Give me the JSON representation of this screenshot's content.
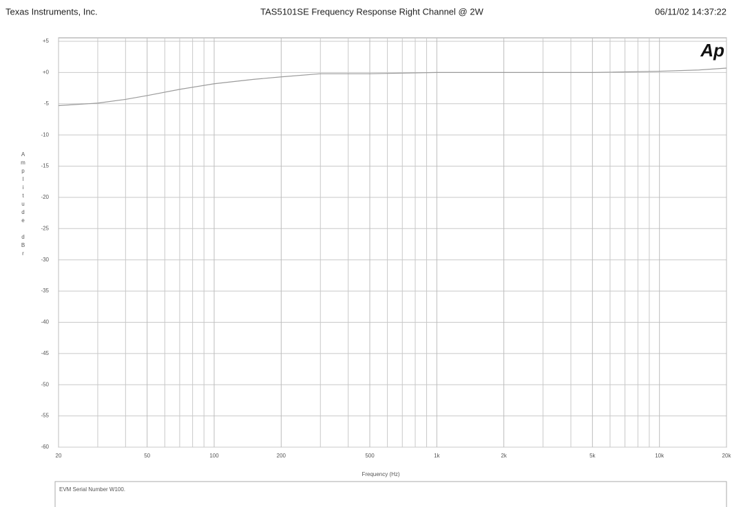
{
  "chart_data": {
    "type": "line",
    "company": "Texas Instruments, Inc.",
    "title": "TAS5101SE   Frequency Response Right Channel @ 2W",
    "timestamp": "06/11/02 14:37:22",
    "logo": "Ap",
    "xlabel": "Frequency (Hz)",
    "ylabel": "Amplitude dBr",
    "note": "EVM Serial Number W100.",
    "xscale": "log",
    "xlim": [
      20,
      20000
    ],
    "xticks": [
      20,
      50,
      100,
      200,
      500,
      {
        "value": 1000,
        "label": "1k"
      },
      {
        "value": 2000,
        "label": "2k"
      },
      {
        "value": 5000,
        "label": "5k"
      },
      {
        "value": 10000,
        "label": "10k"
      },
      {
        "value": 20000,
        "label": "20k"
      }
    ],
    "xminorticks": [
      30,
      40,
      60,
      70,
      80,
      90,
      300,
      400,
      600,
      700,
      800,
      900,
      3000,
      4000,
      6000,
      7000,
      8000,
      9000
    ],
    "ylim": [
      -60,
      5
    ],
    "yticks": [
      {
        "value": 5,
        "label": "+5"
      },
      {
        "value": 0,
        "label": "+0"
      },
      -5,
      -10,
      -15,
      -20,
      -25,
      -30,
      -35,
      -40,
      -45,
      -50,
      -55,
      -60
    ],
    "grid": true,
    "x": [
      20,
      30,
      40,
      50,
      70,
      100,
      150,
      200,
      300,
      500,
      700,
      1000,
      2000,
      5000,
      10000,
      15000,
      20000
    ],
    "series": [
      {
        "name": "Right Channel",
        "color": "#9a9a9a",
        "values": [
          -5.3,
          -4.9,
          -4.3,
          -3.7,
          -2.7,
          -1.8,
          -1.1,
          -0.7,
          -0.2,
          -0.2,
          -0.1,
          0,
          0,
          0,
          0.2,
          0.4,
          0.7
        ]
      }
    ]
  }
}
